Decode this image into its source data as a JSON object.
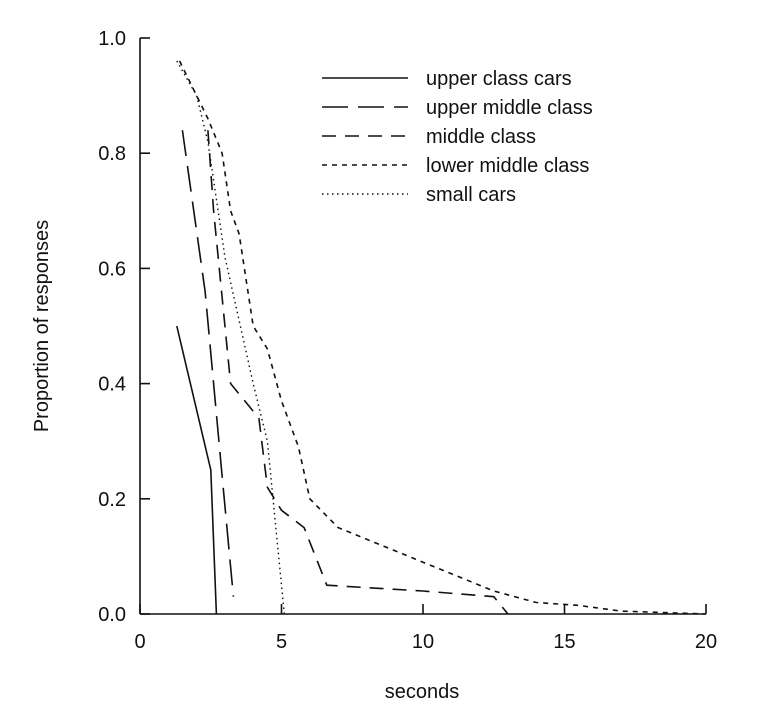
{
  "chart_data": {
    "type": "line",
    "title": "",
    "xlabel": "seconds",
    "ylabel": "Proportion of responses",
    "xlim": [
      0,
      20
    ],
    "ylim": [
      0,
      1.0
    ],
    "x_ticks": [
      0,
      5,
      10,
      15,
      20
    ],
    "x_tick_labels": [
      "0",
      "5",
      "10",
      "15",
      "20"
    ],
    "y_ticks": [
      0,
      0.2,
      0.4,
      0.6,
      0.8,
      1.0
    ],
    "y_tick_labels": [
      "0.0",
      "0.2",
      "0.4",
      "0.6",
      "0.8",
      "1.0"
    ],
    "grid": false,
    "legend_position": "top-right",
    "series": [
      {
        "name": "upper class cars",
        "style": "solid",
        "color": "#111111",
        "x": [
          1.3,
          2.5,
          2.5,
          2.7
        ],
        "y": [
          0.5,
          0.25,
          0.25,
          0.0
        ]
      },
      {
        "name": "upper middle class",
        "style": "long-dash",
        "color": "#111111",
        "x": [
          1.5,
          2.3,
          2.9,
          3.3
        ],
        "y": [
          0.84,
          0.56,
          0.24,
          0.03
        ]
      },
      {
        "name": "middle class",
        "style": "dash",
        "color": "#111111",
        "x": [
          2.4,
          2.6,
          3.2,
          4.2,
          4.5,
          5.0,
          5.8,
          6.6,
          10.0,
          12.5,
          13.0
        ],
        "y": [
          0.84,
          0.7,
          0.4,
          0.34,
          0.22,
          0.18,
          0.15,
          0.05,
          0.04,
          0.03,
          0.0
        ]
      },
      {
        "name": "lower middle class",
        "style": "short-dash",
        "color": "#111111",
        "x": [
          1.4,
          2.0,
          2.4,
          2.9,
          3.2,
          3.5,
          4.0,
          4.5,
          5.0,
          5.6,
          6.0,
          7.0,
          10.0,
          12.5,
          14.0,
          15.5,
          17.0,
          20.0
        ],
        "y": [
          0.96,
          0.9,
          0.86,
          0.8,
          0.7,
          0.66,
          0.5,
          0.46,
          0.37,
          0.29,
          0.2,
          0.15,
          0.09,
          0.04,
          0.02,
          0.015,
          0.005,
          0.0
        ]
      },
      {
        "name": "small cars",
        "style": "dotted",
        "color": "#111111",
        "x": [
          1.3,
          2.0,
          2.4,
          3.0,
          4.0,
          4.3,
          4.5,
          5.1
        ],
        "y": [
          0.96,
          0.9,
          0.82,
          0.62,
          0.4,
          0.34,
          0.3,
          0.0
        ]
      }
    ]
  }
}
